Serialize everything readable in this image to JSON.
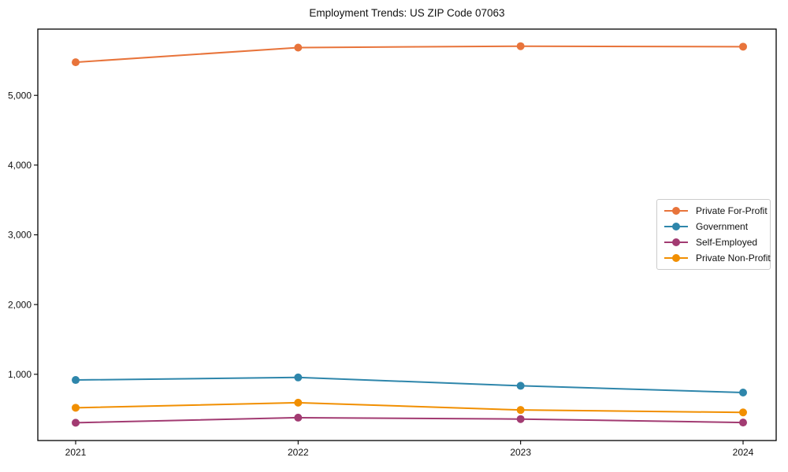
{
  "chart_data": {
    "type": "line",
    "title": "Employment Trends: US ZIP Code 07063",
    "x": [
      "2021",
      "2022",
      "2023",
      "2024"
    ],
    "series": [
      {
        "name": "Private For-Profit",
        "color": "#e8743b",
        "values": [
          5475,
          5685,
          5705,
          5698
        ]
      },
      {
        "name": "Government",
        "color": "#2e86ab",
        "values": [
          918,
          955,
          835,
          738
        ]
      },
      {
        "name": "Self-Employed",
        "color": "#a23b72",
        "values": [
          305,
          378,
          358,
          308
        ]
      },
      {
        "name": "Private Non-Profit",
        "color": "#f18f01",
        "values": [
          520,
          593,
          488,
          453
        ]
      }
    ],
    "yticks": [
      1000,
      2000,
      3000,
      4000,
      5000
    ],
    "ytick_labels": [
      "1,000",
      "2,000",
      "3,000",
      "4,000",
      "5,000"
    ],
    "ylim": [
      50,
      5950
    ],
    "xlabel": "",
    "ylabel": "",
    "grid": false,
    "legend_position": "center right",
    "marker": "circle",
    "axis_color": "#000000",
    "legend_border_color": "#cccccc"
  }
}
